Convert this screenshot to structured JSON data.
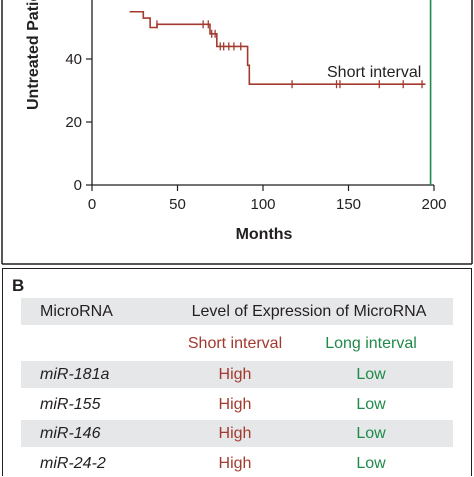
{
  "chart_data": {
    "type": "line",
    "ylabel": "Untreated Patie",
    "xlabel": "Months",
    "xlim": [
      0,
      200
    ],
    "ylim": [
      0,
      50
    ],
    "xticks": [
      0,
      50,
      100,
      150,
      200
    ],
    "yticks": [
      0,
      20,
      40
    ],
    "series": [
      {
        "name": "Short interval",
        "color": "#a33a2f",
        "steps": [
          [
            22,
            55
          ],
          [
            30,
            53
          ],
          [
            34,
            50
          ],
          [
            38,
            51
          ],
          [
            65,
            51
          ],
          [
            68,
            51
          ],
          [
            69,
            48
          ],
          [
            72,
            48
          ],
          [
            73,
            44
          ],
          [
            90,
            44
          ],
          [
            91,
            38
          ],
          [
            92,
            32
          ],
          [
            195,
            32
          ]
        ],
        "censored": [
          [
            38,
            51
          ],
          [
            65,
            51
          ],
          [
            68,
            51
          ],
          [
            70,
            48
          ],
          [
            72,
            48
          ],
          [
            75,
            44
          ],
          [
            77,
            44
          ],
          [
            80,
            44
          ],
          [
            83,
            44
          ],
          [
            87,
            44
          ],
          [
            117,
            32
          ],
          [
            143,
            32
          ],
          [
            145,
            32
          ],
          [
            168,
            32
          ],
          [
            182,
            32
          ],
          [
            193,
            32
          ]
        ]
      },
      {
        "name": "Long interval",
        "color": "#1f8a4a",
        "vertical_x": 198
      }
    ]
  },
  "panel_b": {
    "letter": "B",
    "header": {
      "col1": "MicroRNA",
      "col2": "Level of Expression of MicroRNA"
    },
    "subheader": {
      "short": "Short interval",
      "long": "Long interval"
    },
    "rows": [
      {
        "name": "miR-181a",
        "short": "High",
        "long": "Low"
      },
      {
        "name": "miR-155",
        "short": "High",
        "long": "Low"
      },
      {
        "name": "miR-146",
        "short": "High",
        "long": "Low"
      },
      {
        "name": "miR-24-2",
        "short": "High",
        "long": "Low"
      }
    ]
  }
}
